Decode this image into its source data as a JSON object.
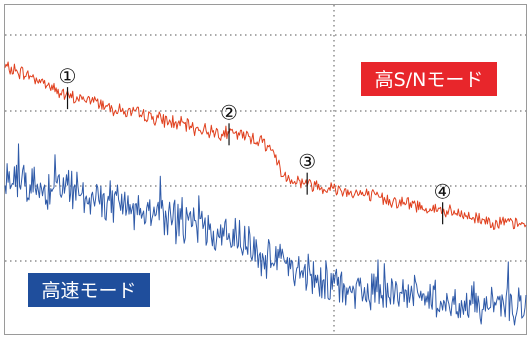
{
  "chart_data": {
    "type": "line",
    "title": "",
    "xlabel": "",
    "ylabel": "",
    "grid": true,
    "xlim": [
      0,
      100
    ],
    "ylim": [
      0,
      100
    ],
    "series": [
      {
        "name": "高S/Nモード",
        "color": "#e0401e",
        "badge_color": "#e8262b",
        "anchors": [
          [
            0,
            81
          ],
          [
            4,
            79
          ],
          [
            8,
            76
          ],
          [
            12,
            72
          ],
          [
            17,
            71
          ],
          [
            22,
            68
          ],
          [
            28,
            66
          ],
          [
            33,
            64
          ],
          [
            38,
            62
          ],
          [
            43,
            61
          ],
          [
            47,
            60
          ],
          [
            50,
            58
          ],
          [
            52,
            54
          ],
          [
            53,
            49
          ],
          [
            55,
            47
          ],
          [
            60,
            45
          ],
          [
            64,
            44
          ],
          [
            70,
            42
          ],
          [
            76,
            40
          ],
          [
            82,
            38
          ],
          [
            88,
            36
          ],
          [
            94,
            34
          ],
          [
            100,
            33
          ]
        ]
      },
      {
        "name": "高速モード",
        "color": "#2f5aa8",
        "badge_color": "#1f4e9c",
        "anchors": [
          [
            0,
            48
          ],
          [
            5,
            45
          ],
          [
            10,
            44
          ],
          [
            15,
            42
          ],
          [
            20,
            40
          ],
          [
            25,
            38
          ],
          [
            30,
            36
          ],
          [
            35,
            34
          ],
          [
            40,
            31
          ],
          [
            45,
            28
          ],
          [
            50,
            24
          ],
          [
            55,
            21
          ],
          [
            60,
            17
          ],
          [
            65,
            15
          ],
          [
            70,
            13
          ],
          [
            75,
            12
          ],
          [
            80,
            11
          ],
          [
            85,
            10
          ],
          [
            90,
            9
          ],
          [
            95,
            9
          ],
          [
            100,
            8
          ]
        ]
      }
    ],
    "markers": [
      {
        "label": "①",
        "x": 12,
        "y": 72
      },
      {
        "label": "②",
        "x": 43,
        "y": 61
      },
      {
        "label": "③",
        "x": 58,
        "y": 46
      },
      {
        "label": "④",
        "x": 84,
        "y": 37
      }
    ]
  }
}
